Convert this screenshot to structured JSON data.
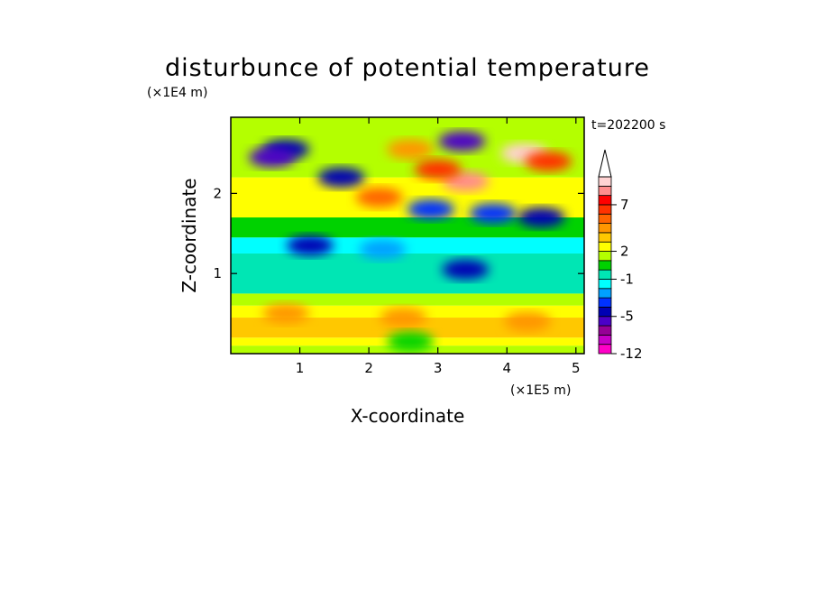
{
  "chart_data": {
    "type": "heatmap",
    "title": "disturbunce of potential temperature",
    "xlabel": "X-coordinate",
    "ylabel": "Z-coordinate",
    "x_unit": "(×1E5 m)",
    "y_unit": "(×1E4 m)",
    "time_label": "t=202200 s",
    "xlim": [
      0,
      5.12
    ],
    "ylim": [
      0,
      2.95
    ],
    "x_ticks": [
      "1",
      "2",
      "3",
      "4",
      "5"
    ],
    "y_ticks": [
      "1",
      "2"
    ],
    "colorbar": {
      "levels": [
        -12,
        -10,
        -8,
        -6,
        -5,
        -4,
        -3,
        -2,
        -1,
        0,
        1,
        2,
        3,
        4,
        5,
        6,
        7,
        8,
        9,
        10
      ],
      "labeled": [
        "-12",
        "-5",
        "-1",
        "2",
        "7"
      ],
      "colors": [
        "#ff00c8",
        "#c800c8",
        "#960096",
        "#4b00c8",
        "#0000b4",
        "#0032ff",
        "#00a0ff",
        "#00ffff",
        "#00e6b4",
        "#00d200",
        "#b4ff00",
        "#ffff00",
        "#ffc800",
        "#ff9600",
        "#ff6400",
        "#ff3200",
        "#ff0000",
        "#ff8c8c",
        "#ffd2d2"
      ],
      "extend": "max"
    },
    "bands": [
      {
        "z": [
          0.0,
          0.1
        ],
        "value": 1.5
      },
      {
        "z": [
          0.1,
          0.2
        ],
        "value": 2.5
      },
      {
        "z": [
          0.2,
          0.45
        ],
        "value": 3.0
      },
      {
        "z": [
          0.45,
          0.6
        ],
        "value": 2.5
      },
      {
        "z": [
          0.6,
          0.75
        ],
        "value": 1.5
      },
      {
        "z": [
          0.75,
          1.25
        ],
        "value": -0.5
      },
      {
        "z": [
          1.25,
          1.45
        ],
        "value": -1.5
      },
      {
        "z": [
          1.45,
          1.7
        ],
        "value": 0.5
      },
      {
        "z": [
          1.7,
          2.2
        ],
        "value": 2.5
      },
      {
        "z": [
          2.2,
          2.95
        ],
        "value": 1.5
      }
    ],
    "features": [
      {
        "x": 0.8,
        "z": 2.55,
        "value": -5
      },
      {
        "x": 0.6,
        "z": 2.45,
        "value": -6
      },
      {
        "x": 1.6,
        "z": 2.2,
        "value": -5
      },
      {
        "x": 2.6,
        "z": 2.55,
        "value": 4
      },
      {
        "x": 2.15,
        "z": 1.95,
        "value": 5
      },
      {
        "x": 3.35,
        "z": 2.65,
        "value": -6
      },
      {
        "x": 3.4,
        "z": 2.15,
        "value": 8
      },
      {
        "x": 3.0,
        "z": 2.3,
        "value": 6
      },
      {
        "x": 4.25,
        "z": 2.5,
        "value": 9
      },
      {
        "x": 4.6,
        "z": 2.4,
        "value": 6
      },
      {
        "x": 2.9,
        "z": 1.8,
        "value": -4
      },
      {
        "x": 3.8,
        "z": 1.75,
        "value": -4
      },
      {
        "x": 4.5,
        "z": 1.7,
        "value": -5
      },
      {
        "x": 1.15,
        "z": 1.35,
        "value": -5
      },
      {
        "x": 2.2,
        "z": 1.3,
        "value": -3
      },
      {
        "x": 3.4,
        "z": 1.05,
        "value": -5
      },
      {
        "x": 0.8,
        "z": 0.5,
        "value": 4
      },
      {
        "x": 2.5,
        "z": 0.45,
        "value": 4
      },
      {
        "x": 4.3,
        "z": 0.4,
        "value": 4
      },
      {
        "x": 2.6,
        "z": 0.15,
        "value": 0.5
      }
    ]
  }
}
